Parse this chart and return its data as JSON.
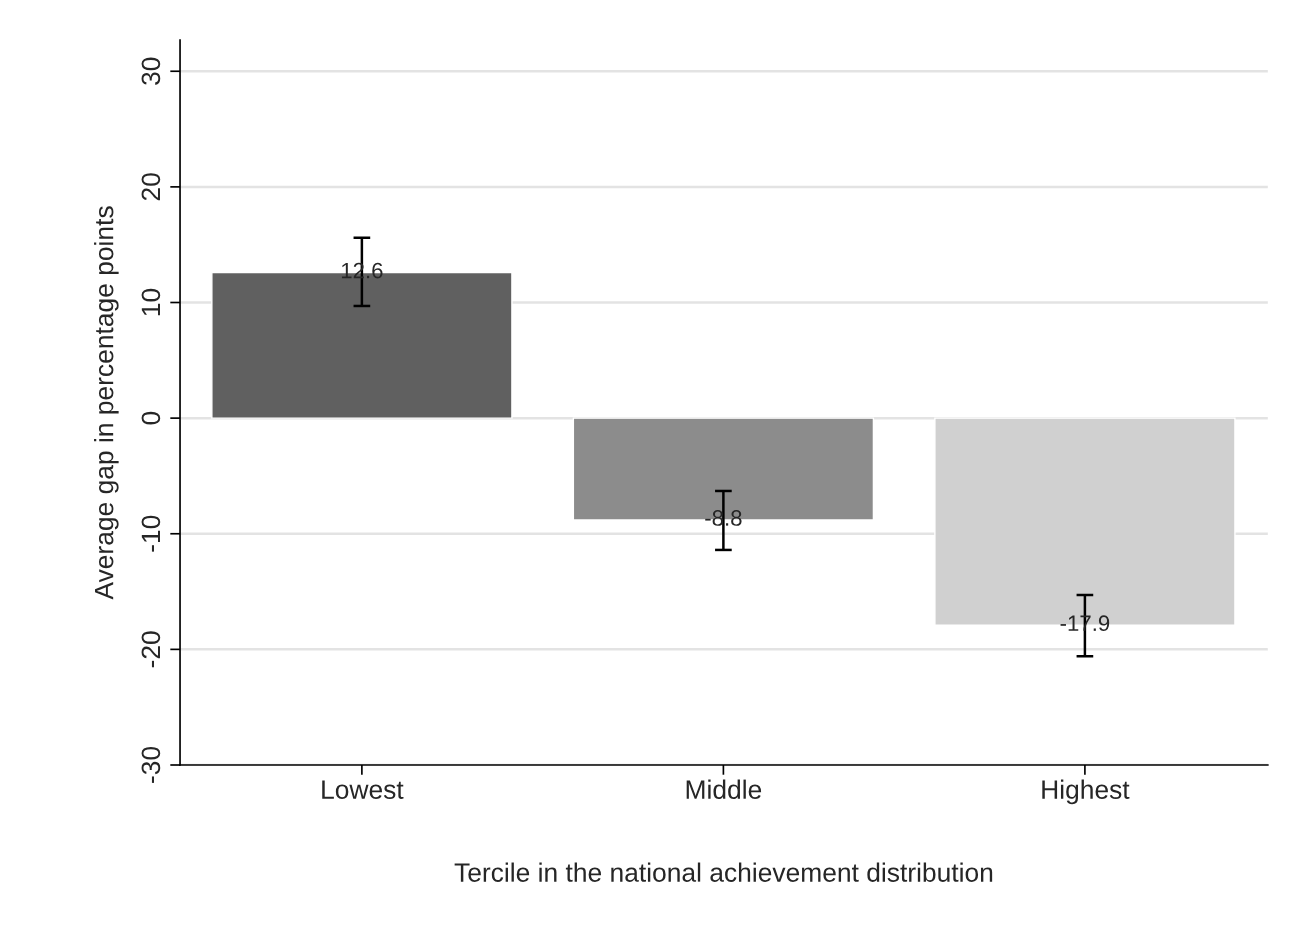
{
  "chart_data": {
    "type": "bar",
    "xlabel": "Tercile in the national achievement distribution",
    "ylabel": "Average gap in percentage points",
    "categories": [
      "Lowest",
      "Middle",
      "Highest"
    ],
    "values": [
      12.6,
      -8.8,
      -17.9
    ],
    "colors": [
      "#606060",
      "#8c8c8c",
      "#d0d0d0"
    ],
    "errors": [
      [
        9.7,
        15.6
      ],
      [
        -11.4,
        -6.3
      ],
      [
        -20.6,
        -15.3
      ]
    ],
    "data_labels": true,
    "ylim": [
      -30,
      32.7
    ],
    "yticks": [
      -30,
      -20,
      -10,
      0,
      10,
      20,
      30
    ],
    "grid": "y"
  }
}
